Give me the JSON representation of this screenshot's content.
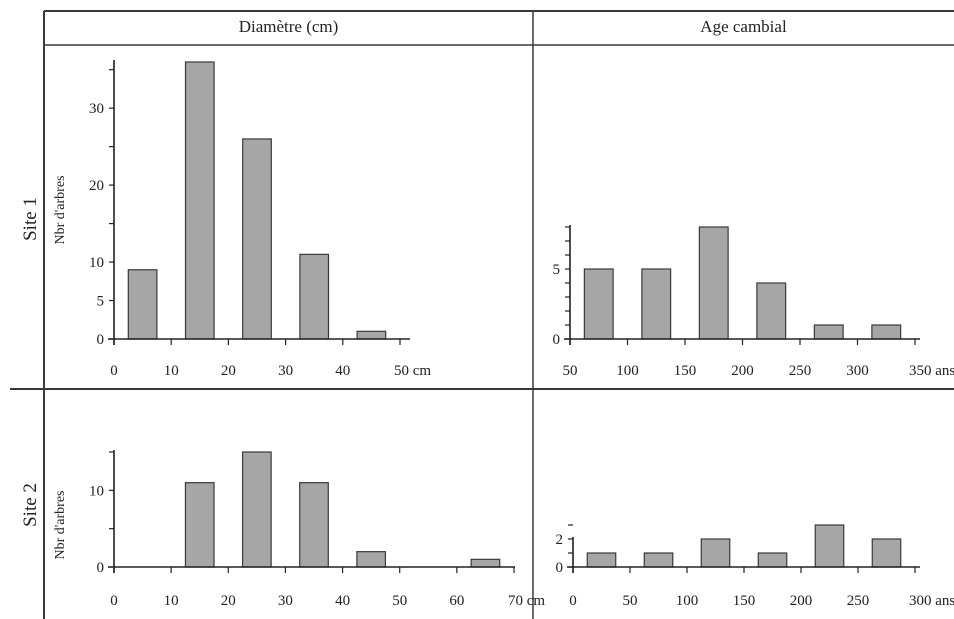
{
  "columns": {
    "left": "Diamètre (cm)",
    "right": "Age cambial"
  },
  "rows": {
    "top": "Site 1",
    "bottom": "Site 2"
  },
  "colors": {
    "bar_fill": "#a6a6a6",
    "bar_stroke": "#3a3a3a",
    "axis": "#222222",
    "grid_line": "#3a3a3a"
  },
  "chart_data": [
    {
      "id": "site1-diameter",
      "type": "bar",
      "ylabel": "Nbr d'arbres",
      "x_ticks": [
        "0",
        "10",
        "20",
        "30",
        "40",
        "50 cm"
      ],
      "x_tick_values": [
        0,
        10,
        20,
        30,
        40,
        50
      ],
      "y_ticks": [
        0,
        5,
        10,
        20,
        30
      ],
      "ylim": [
        0,
        36
      ],
      "bars": [
        {
          "x0": 2.5,
          "x1": 7.5,
          "value": 9
        },
        {
          "x0": 12.5,
          "x1": 17.5,
          "value": 36
        },
        {
          "x0": 22.5,
          "x1": 27.5,
          "value": 26
        },
        {
          "x0": 32.5,
          "x1": 37.5,
          "value": 11
        },
        {
          "x0": 42.5,
          "x1": 47.5,
          "value": 1
        }
      ]
    },
    {
      "id": "site1-age",
      "type": "bar",
      "ylabel": "",
      "x_ticks": [
        "50",
        "100",
        "150",
        "200",
        "250",
        "300",
        "350 ans"
      ],
      "x_tick_values": [
        50,
        100,
        150,
        200,
        250,
        300,
        350
      ],
      "y_ticks": [
        0,
        5
      ],
      "ylim": [
        0,
        8
      ],
      "bars": [
        {
          "x0": 62.5,
          "x1": 87.5,
          "value": 5
        },
        {
          "x0": 112.5,
          "x1": 137.5,
          "value": 5
        },
        {
          "x0": 162.5,
          "x1": 187.5,
          "value": 8
        },
        {
          "x0": 212.5,
          "x1": 237.5,
          "value": 4
        },
        {
          "x0": 262.5,
          "x1": 287.5,
          "value": 1
        },
        {
          "x0": 312.5,
          "x1": 337.5,
          "value": 1
        }
      ]
    },
    {
      "id": "site2-diameter",
      "type": "bar",
      "ylabel": "Nbr d'arbres",
      "x_ticks": [
        "0",
        "10",
        "20",
        "30",
        "40",
        "50",
        "60",
        "70 cm"
      ],
      "x_tick_values": [
        0,
        10,
        20,
        30,
        40,
        50,
        60,
        70
      ],
      "y_ticks": [
        0,
        10
      ],
      "ylim": [
        0,
        15
      ],
      "bars": [
        {
          "x0": 12.5,
          "x1": 17.5,
          "value": 11
        },
        {
          "x0": 22.5,
          "x1": 27.5,
          "value": 15
        },
        {
          "x0": 32.5,
          "x1": 37.5,
          "value": 11
        },
        {
          "x0": 42.5,
          "x1": 47.5,
          "value": 2
        },
        {
          "x0": 62.5,
          "x1": 67.5,
          "value": 1
        }
      ]
    },
    {
      "id": "site2-age",
      "type": "bar",
      "ylabel": "",
      "x_ticks": [
        "0",
        "50",
        "100",
        "150",
        "200",
        "250",
        "300 ans"
      ],
      "x_tick_values": [
        0,
        50,
        100,
        150,
        200,
        250,
        300
      ],
      "y_ticks": [
        0,
        2
      ],
      "ylim": [
        0,
        3
      ],
      "bars": [
        {
          "x0": 12.5,
          "x1": 37.5,
          "value": 1
        },
        {
          "x0": 62.5,
          "x1": 87.5,
          "value": 1
        },
        {
          "x0": 112.5,
          "x1": 137.5,
          "value": 2
        },
        {
          "x0": 162.5,
          "x1": 187.5,
          "value": 1
        },
        {
          "x0": 212.5,
          "x1": 237.5,
          "value": 3
        },
        {
          "x0": 262.5,
          "x1": 287.5,
          "value": 2
        }
      ]
    }
  ]
}
